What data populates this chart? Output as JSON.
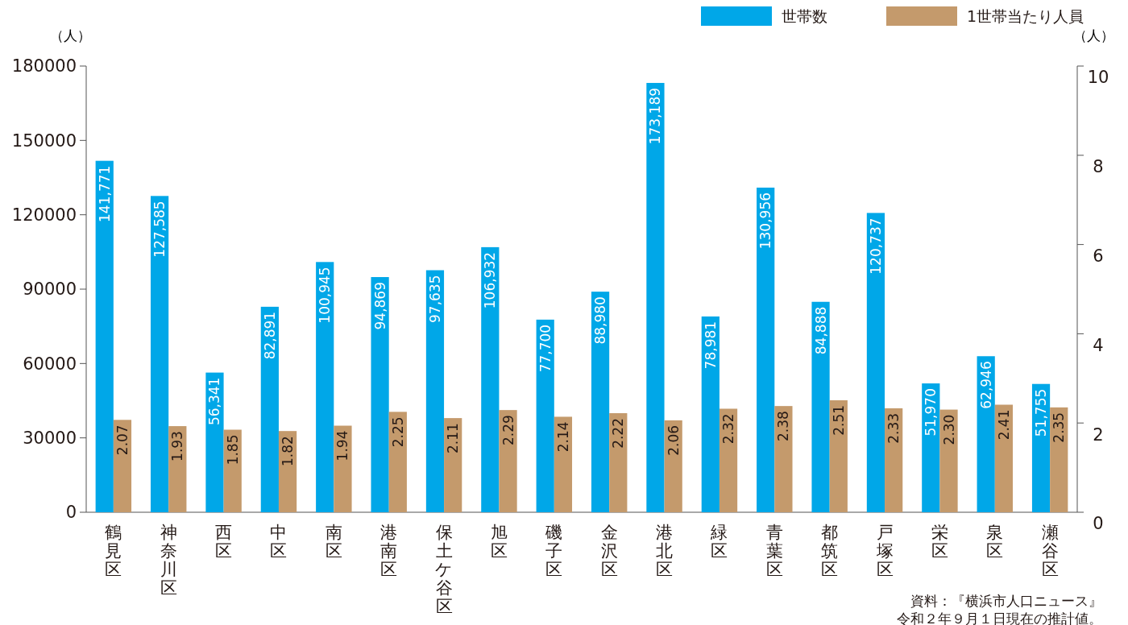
{
  "chart_data": {
    "type": "bar",
    "ylabel": "（人）",
    "y2label": "（人）",
    "categories": [
      "鶴見区",
      "神奈川区",
      "西区",
      "中区",
      "南区",
      "港南区",
      "保土ケ谷区",
      "旭区",
      "磯子区",
      "金沢区",
      "港北区",
      "緑区",
      "青葉区",
      "都筑区",
      "戸塚区",
      "栄区",
      "泉区",
      "瀬谷区"
    ],
    "series": [
      {
        "name": "世帯数",
        "color": "#00a7e8",
        "values": [
          141771,
          127585,
          56341,
          82891,
          100945,
          94869,
          97635,
          106932,
          77700,
          88980,
          173189,
          78981,
          130956,
          84888,
          120737,
          51970,
          62946,
          51755
        ],
        "value_labels": [
          "141,771",
          "127,585",
          "56,341",
          "82,891",
          "100,945",
          "94,869",
          "97,635",
          "106,932",
          "77,700",
          "88,980",
          "173,189",
          "78,981",
          "130,956",
          "84,888",
          "120,737",
          "51,970",
          "62,946",
          "51,755"
        ]
      },
      {
        "name": "1世帯当たり人員",
        "color": "#c49a6c",
        "axis": "y2",
        "values": [
          2.07,
          1.93,
          1.85,
          1.82,
          1.94,
          2.25,
          2.11,
          2.29,
          2.14,
          2.22,
          2.06,
          2.32,
          2.38,
          2.51,
          2.33,
          2.3,
          2.41,
          2.35
        ],
        "value_labels": [
          "2.07",
          "1.93",
          "1.85",
          "1.82",
          "1.94",
          "2.25",
          "2.11",
          "2.29",
          "2.14",
          "2.22",
          "2.06",
          "2.32",
          "2.38",
          "2.51",
          "2.33",
          "2.30",
          "2.41",
          "2.35"
        ]
      }
    ],
    "ylim": [
      0,
      180000
    ],
    "yticks": [
      0,
      30000,
      60000,
      90000,
      120000,
      150000,
      180000
    ],
    "y2lim": [
      0,
      10
    ],
    "y2ticks": [
      0,
      2,
      4,
      6,
      8,
      10
    ],
    "grid": false,
    "legend": "top right",
    "annotations": [
      "資料：『横浜市人口ニュース』",
      "令和２年９月１日現在の推計値。"
    ]
  }
}
